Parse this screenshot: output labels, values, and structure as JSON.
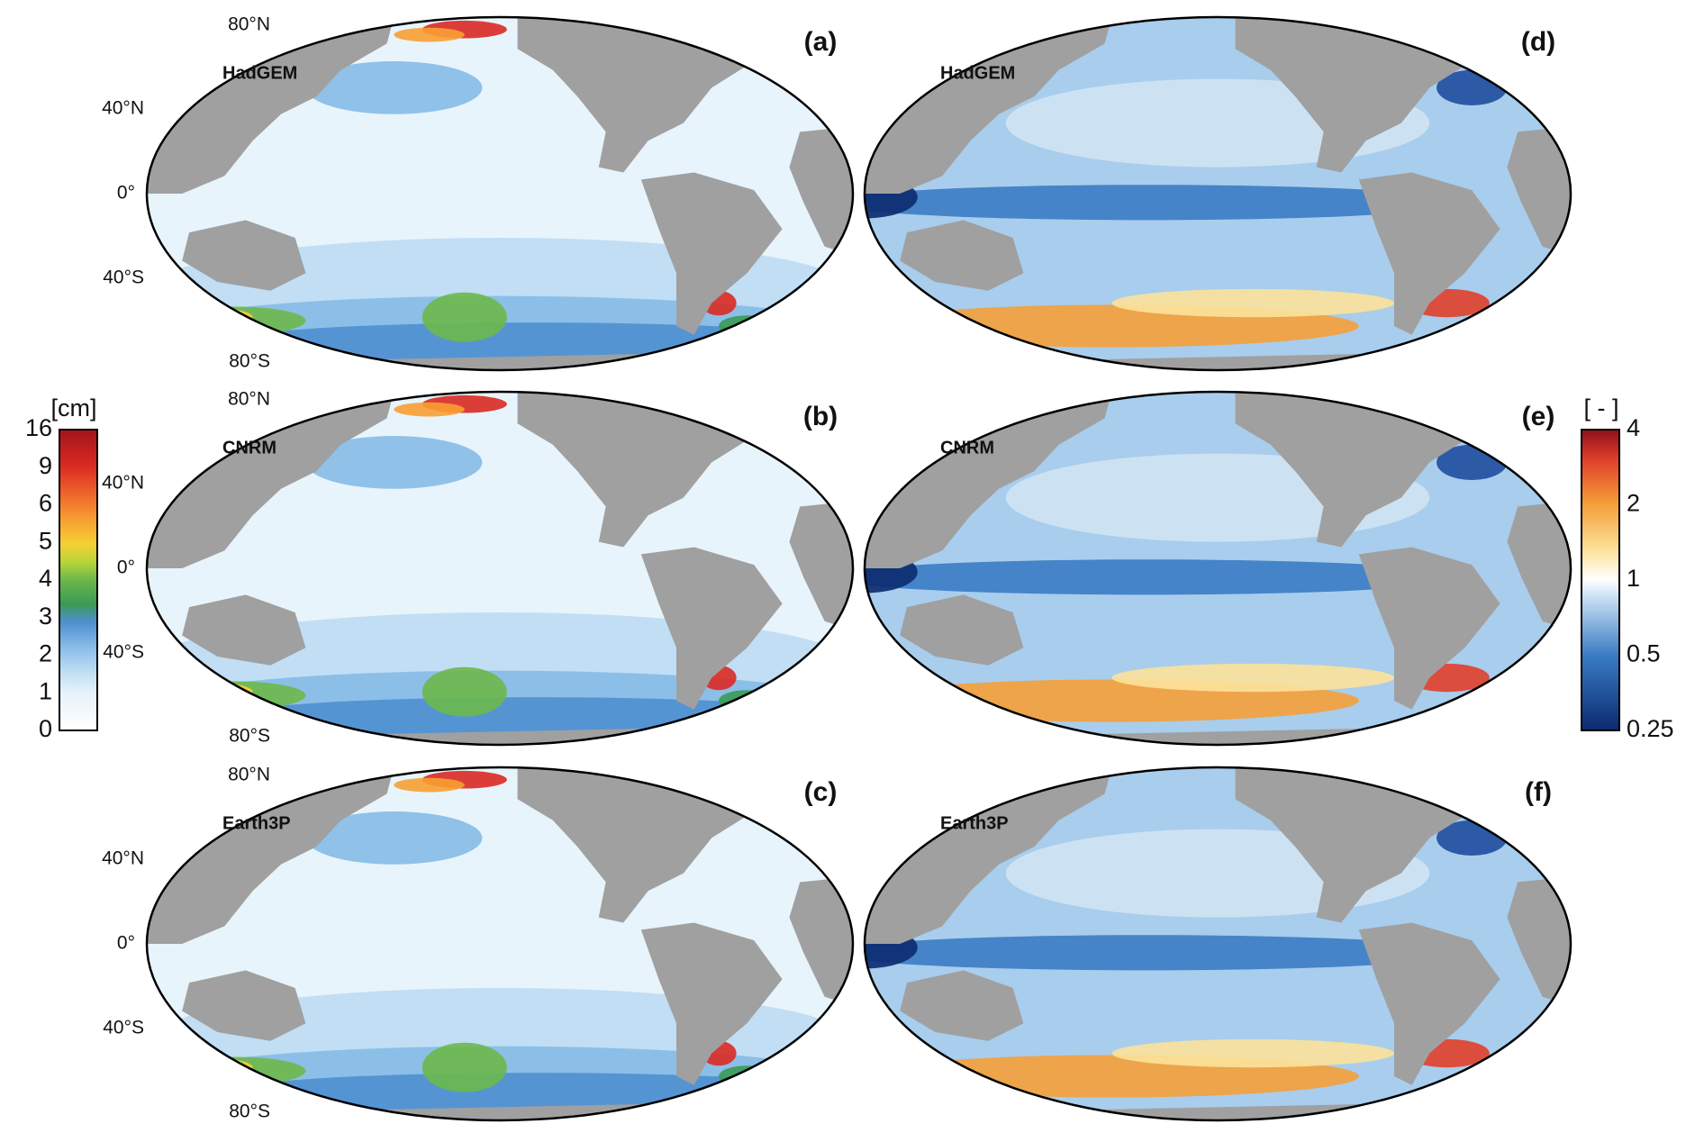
{
  "panels": [
    {
      "label": "(a)",
      "model": "HadGEM"
    },
    {
      "label": "(b)",
      "model": "CNRM"
    },
    {
      "label": "(c)",
      "model": "Earth3P"
    },
    {
      "label": "(d)",
      "model": "HadGEM"
    },
    {
      "label": "(e)",
      "model": "CNRM"
    },
    {
      "label": "(f)",
      "model": "Earth3P"
    }
  ],
  "lat_labels": [
    "80°N",
    "40°N",
    "0°",
    "40°S",
    "80°S"
  ],
  "colorbar_left": {
    "unit": "[cm]",
    "ticks": [
      "0",
      "1",
      "2",
      "3",
      "4",
      "5",
      "6",
      "9",
      "16"
    ]
  },
  "colorbar_right": {
    "unit": "[ - ]",
    "ticks": [
      "0.25",
      "0.5",
      "1",
      "2",
      "4"
    ]
  }
}
